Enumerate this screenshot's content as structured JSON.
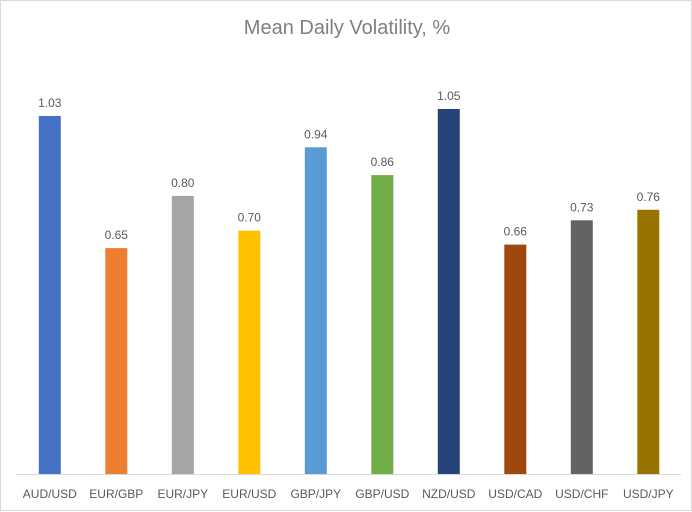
{
  "chart_data": {
    "type": "bar",
    "title": "Mean Daily Volatility, %",
    "xlabel": "",
    "ylabel": "",
    "categories": [
      "AUD/USD",
      "EUR/GBP",
      "EUR/JPY",
      "EUR/USD",
      "GBP/JPY",
      "GBP/USD",
      "NZD/USD",
      "USD/CAD",
      "USD/CHF",
      "USD/JPY"
    ],
    "values": [
      1.03,
      0.65,
      0.8,
      0.7,
      0.94,
      0.86,
      1.05,
      0.66,
      0.73,
      0.76
    ],
    "value_labels": [
      "1.03",
      "0.65",
      "0.80",
      "0.70",
      "0.94",
      "0.86",
      "1.05",
      "0.66",
      "0.73",
      "0.76"
    ],
    "colors": [
      "#4472c4",
      "#ed7d31",
      "#a5a5a5",
      "#ffc000",
      "#5b9bd5",
      "#70ad47",
      "#264478",
      "#9e480e",
      "#636363",
      "#997300"
    ],
    "ylim": [
      0,
      1.3
    ],
    "grid": false,
    "legend": "none"
  }
}
